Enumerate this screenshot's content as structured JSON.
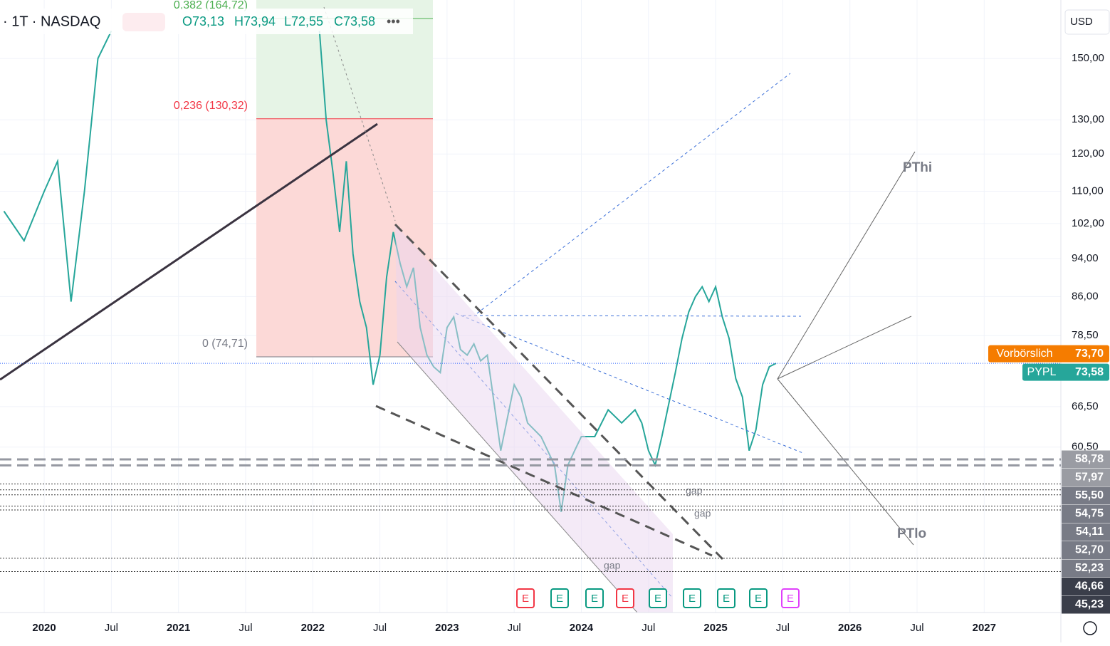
{
  "header": {
    "symbol": "· 1T · NASDAQ",
    "open": "O73,13",
    "high": "H73,94",
    "low": "L72,55",
    "close": "C73,58",
    "currency": "USD"
  },
  "chart_data": {
    "type": "line",
    "log_scale": true,
    "color": "#26a69a",
    "x": [
      2019.7,
      2019.85,
      2020.0,
      2020.1,
      2020.2,
      2020.3,
      2020.4,
      2020.5,
      2020.6,
      2022.05,
      2022.1,
      2022.15,
      2022.2,
      2022.25,
      2022.3,
      2022.35,
      2022.4,
      2022.45,
      2022.5,
      2022.55,
      2022.6,
      2022.65,
      2022.7,
      2022.75,
      2022.8,
      2022.85,
      2022.9,
      2022.95,
      2023.0,
      2023.05,
      2023.1,
      2023.15,
      2023.2,
      2023.25,
      2023.3,
      2023.4,
      2023.5,
      2023.55,
      2023.6,
      2023.7,
      2023.8,
      2023.85,
      2023.9,
      2023.95,
      2024.0,
      2024.1,
      2024.2,
      2024.3,
      2024.4,
      2024.45,
      2024.5,
      2024.55,
      2024.6,
      2024.7,
      2024.75,
      2024.8,
      2024.85,
      2024.9,
      2024.95,
      2025.0,
      2025.05,
      2025.1,
      2025.15,
      2025.2,
      2025.25,
      2025.3,
      2025.35,
      2025.4,
      2025.45
    ],
    "values": [
      105,
      98,
      110,
      118,
      85,
      110,
      150,
      160,
      null,
      160,
      130,
      115,
      100,
      118,
      95,
      85,
      80,
      70,
      75,
      90,
      100,
      93,
      88,
      92,
      80,
      75,
      73,
      72,
      80,
      82,
      76,
      75,
      77,
      74,
      75,
      60,
      70,
      68,
      64,
      62,
      58,
      52,
      58,
      60,
      62,
      62,
      66,
      64,
      66,
      64,
      60,
      58,
      62,
      72,
      78,
      83,
      86,
      88,
      85,
      88,
      82,
      78,
      71,
      68,
      60,
      63,
      70,
      73,
      73.58
    ],
    "xlim": [
      2019.671,
      2027.571
    ],
    "ylim": [
      41.1,
      172
    ],
    "yticks": [
      {
        "value": 150,
        "label": "150,00"
      },
      {
        "value": 130,
        "label": "130,00"
      },
      {
        "value": 120,
        "label": "120,00"
      },
      {
        "value": 110,
        "label": "110,00"
      },
      {
        "value": 102,
        "label": "102,00"
      },
      {
        "value": 94,
        "label": "94,00"
      },
      {
        "value": 86,
        "label": "86,00"
      },
      {
        "value": 78.5,
        "label": "78,50"
      },
      {
        "value": 66.5,
        "label": "66,50"
      },
      {
        "value": 60.5,
        "label": "60,50"
      }
    ],
    "xticks": [
      2020,
      {
        "value": 2020.5,
        "label": "Jul"
      },
      2021,
      {
        "value": 2021.5,
        "label": "Jul"
      },
      2022,
      {
        "value": 2022.5,
        "label": "Jul"
      },
      2023,
      {
        "value": 2023.5,
        "label": "Jul"
      },
      2024,
      {
        "value": 2024.5,
        "label": "Jul"
      },
      2025,
      {
        "value": 2025.5,
        "label": "Jul"
      },
      2026,
      {
        "value": 2026.5,
        "label": "Jul"
      },
      2027
    ],
    "price_tags": [
      {
        "value": 58.78,
        "label": "58,78"
      },
      {
        "value": 57.97,
        "label": "57,97"
      },
      {
        "value": 55.5,
        "label": "55,50"
      },
      {
        "value": 54.75,
        "label": "54,75"
      },
      {
        "value": 54.11,
        "label": "54,11"
      },
      {
        "value": 52.7,
        "label": "52,70"
      },
      {
        "value": 52.23,
        "label": "52,23"
      },
      {
        "value": 46.66,
        "label": "46,66"
      },
      {
        "value": 45.23,
        "label": "45,23"
      }
    ],
    "premarket": {
      "name": "Vorbörslich",
      "value": 73.7,
      "label": "73,70"
    },
    "last": {
      "name": "PYPL",
      "value": 73.58,
      "label": "73,58"
    },
    "fib": [
      {
        "value": 164.72,
        "label": "0,382 (164,72)"
      },
      {
        "value": 130.32,
        "label": "0,236 (130,32)"
      },
      {
        "value": 74.71,
        "label": "0 (74,71)"
      }
    ],
    "annotations": [
      "PThi",
      "PTlo",
      "gap",
      "gap",
      "gap"
    ],
    "earnings": [
      "E",
      "E",
      "E",
      "E",
      "E",
      "E",
      "E",
      "E",
      "E"
    ]
  }
}
